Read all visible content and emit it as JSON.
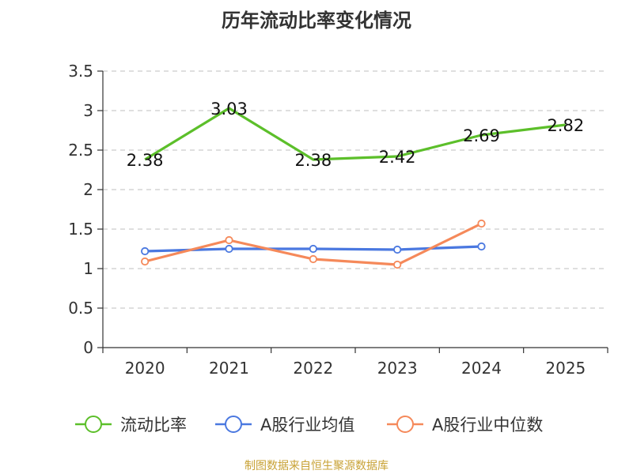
{
  "chart_data": {
    "type": "line",
    "title": "历年流动比率变化情况",
    "categories": [
      "2020",
      "2021",
      "2022",
      "2023",
      "2024",
      "2025"
    ],
    "y_ticks": [
      "0",
      "0.5",
      "1",
      "1.5",
      "2",
      "2.5",
      "3",
      "3.5"
    ],
    "ylim": [
      0,
      3.5
    ],
    "grid": true,
    "legend_position": "bottom",
    "series": [
      {
        "name": "流动比率",
        "color": "#5cbf2a",
        "marker": "none",
        "values": [
          2.38,
          3.03,
          2.38,
          2.42,
          2.69,
          2.82
        ],
        "labels": [
          "2.38",
          "3.03",
          "2.38",
          "2.42",
          "2.69",
          "2.82"
        ]
      },
      {
        "name": "A股行业均值",
        "color": "#4a78e0",
        "marker": "circle",
        "values": [
          1.22,
          1.25,
          1.25,
          1.24,
          1.28,
          null
        ]
      },
      {
        "name": "A股行业中位数",
        "color": "#f5895a",
        "marker": "circle",
        "values": [
          1.09,
          1.36,
          1.12,
          1.05,
          1.57,
          null
        ]
      }
    ]
  },
  "source": "制图数据来自恒生聚源数据库"
}
